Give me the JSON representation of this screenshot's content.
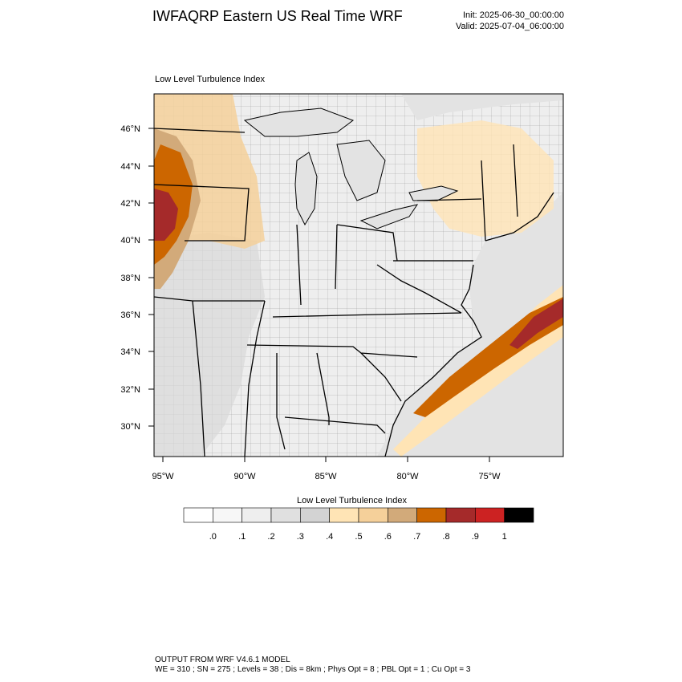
{
  "header": {
    "title": "IWFAQRP Eastern US Real Time WRF",
    "init": "Init: 2025-06-30_00:00:00",
    "valid": "Valid: 2025-07-04_06:00:00"
  },
  "panel": {
    "title": "Low Level Turbulence Index"
  },
  "axes": {
    "lat_labels": [
      "46°N",
      "44°N",
      "42°N",
      "40°N",
      "38°N",
      "36°N",
      "34°N",
      "32°N",
      "30°N"
    ],
    "lon_labels": [
      "95°W",
      "90°W",
      "85°W",
      "80°W",
      "75°W"
    ]
  },
  "colorbar": {
    "title": "Low Level Turbulence Index",
    "labels": [
      ".0",
      ".1",
      ".2",
      ".3",
      ".4",
      ".5",
      ".6",
      ".7",
      ".8",
      ".9",
      "1"
    ],
    "colors": [
      "#ffffff",
      "#f7f7f7",
      "#eeeeee",
      "#e0e0e0",
      "#d3d3d3",
      "#ffe4b5",
      "#f5d09a",
      "#d2aa7a",
      "#cc6600",
      "#a52a2a",
      "#cc2222",
      "#000000"
    ]
  },
  "footer": {
    "line1": "OUTPUT FROM WRF V4.6.1 MODEL",
    "line2": "WE = 310 ; SN = 275 ; Levels = 38 ; Dis = 8km ; Phys Opt = 8 ; PBL Opt = 1 ; Cu Opt = 3"
  }
}
